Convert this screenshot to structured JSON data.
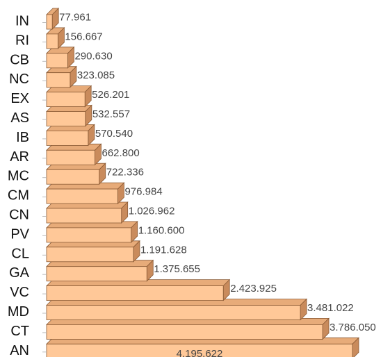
{
  "chart_data": {
    "type": "bar",
    "orientation": "horizontal",
    "style": "3d",
    "categories": [
      "IN",
      "RI",
      "CB",
      "NC",
      "EX",
      "AS",
      "IB",
      "AR",
      "MC",
      "CM",
      "CN",
      "PV",
      "CL",
      "GA",
      "VC",
      "MD",
      "CT",
      "AN"
    ],
    "values": [
      77961,
      156667,
      290630,
      323085,
      526201,
      532557,
      570540,
      662800,
      722336,
      976984,
      1026962,
      1160600,
      1191628,
      1375655,
      2423925,
      3481022,
      3786050,
      4195622
    ],
    "value_labels": [
      "77.961",
      "156.667",
      "290.630",
      "323.085",
      "526.201",
      "532.557",
      "570.540",
      "662.800",
      "722.336",
      "976.984",
      "1.026.962",
      "1.160.600",
      "1.191.628",
      "1.375.655",
      "2.423.925",
      "3.481.022",
      "3.786.050",
      "4.195.622"
    ],
    "xlim": [
      0,
      4195622
    ],
    "colors": {
      "bar_front": "#ffc898",
      "bar_side": "#c98b5c",
      "bar_top": "#e7ab79",
      "bar_stroke": "#8a5a34"
    }
  }
}
